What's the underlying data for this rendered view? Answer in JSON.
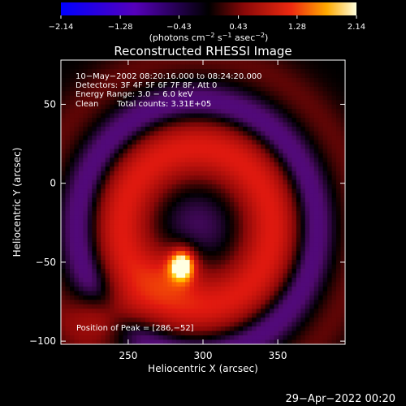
{
  "chart_data": {
    "type": "heatmap",
    "title": "Reconstructed RHESSI Image",
    "xlabel": "Heliocentric X (arcsec)",
    "ylabel": "Heliocentric Y (arcsec)",
    "xlim": [
      205,
      395
    ],
    "ylim": [
      -102,
      78
    ],
    "x_ticks": [
      250,
      300,
      350
    ],
    "y_ticks": [
      -100,
      -50,
      0,
      50
    ],
    "x_tick_labels": [
      "250",
      "300",
      "350"
    ],
    "y_tick_labels": [
      "−100",
      "−50",
      "0",
      "50"
    ],
    "colorbar": {
      "range": [
        -2.14,
        2.14
      ],
      "ticks": [
        -2.14,
        -1.28,
        -0.43,
        0.43,
        1.28,
        2.14
      ],
      "tick_labels": [
        "−2.14",
        "−1.28",
        "−0.43",
        "0.43",
        "1.28",
        "2.14"
      ],
      "unit_label_parts": [
        "(photons cm",
        "−2",
        " s",
        "−1",
        " asec",
        "−2",
        ")"
      ]
    },
    "annotations": {
      "time_range": "10−May−2002 08:20:16.000 to 08:24:20.000",
      "detectors": "Detectors: 3F 4F 5F 6F 7F 8F, Att 0",
      "energy_range": "Energy Range: 3.0 − 6.0 keV",
      "method": "Clean",
      "total_counts": "Total counts: 3.31E+05",
      "peak": "Position of Peak = [286,−52]"
    },
    "peak_position": [
      286,
      -52
    ],
    "components": [
      {
        "kind": "point",
        "x": 286,
        "y": -52,
        "amp": 2.14,
        "sx": 5.5,
        "sy": 6.5
      },
      {
        "kind": "point",
        "x": 282,
        "y": -54,
        "amp": 0.6,
        "sx": 13,
        "sy": 12
      },
      {
        "kind": "ring",
        "x": 296,
        "y": -28,
        "r": 50,
        "w": 15,
        "amp": 1.05
      },
      {
        "kind": "ring",
        "x": 296,
        "y": -28,
        "r": 78,
        "w": 9,
        "amp": -0.6
      },
      {
        "kind": "ring",
        "x": 296,
        "y": -28,
        "r": 108,
        "w": 10,
        "amp": 0.3
      },
      {
        "kind": "point",
        "x": 296,
        "y": -28,
        "amp": -0.3,
        "sx": 20,
        "sy": 20
      },
      {
        "kind": "point",
        "x": 236,
        "y": -84,
        "amp": 0.85,
        "sx": 15,
        "sy": 11
      }
    ]
  },
  "timestamp": "29−Apr−2022 00:20"
}
